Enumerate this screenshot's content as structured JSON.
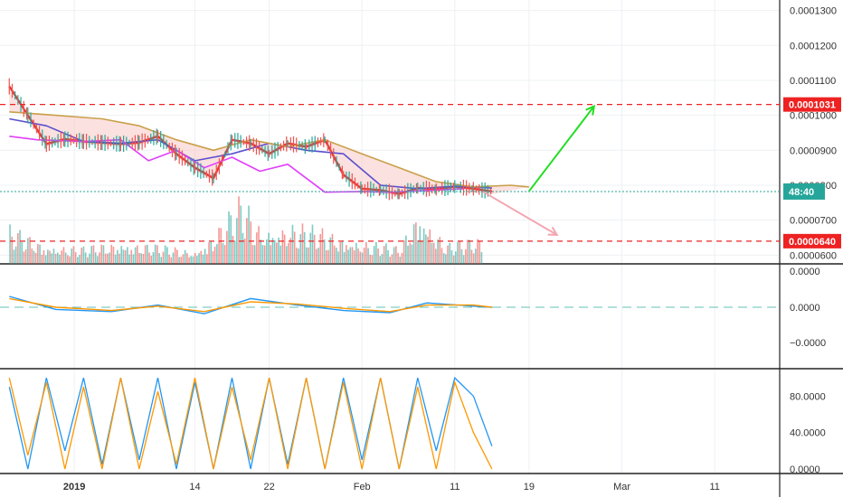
{
  "chart_data": [
    {
      "panel": "price",
      "type": "candlestick",
      "y_axis_ticks": [
        "0.0001300",
        "0.0001200",
        "0.0001100",
        "0.0001000",
        "0.0000900",
        "0.0000800",
        "0.0000700",
        "0.0000600"
      ],
      "ylim": [
        5.75e-05,
        0.000133
      ],
      "last_price_tag": {
        "label": "48:40",
        "value": 7.82e-05,
        "color": "#26a69a"
      },
      "horizontal_levels": [
        {
          "label": "0.0001031",
          "value": 0.0001031,
          "color": "#ee2222",
          "style": "dashed"
        },
        {
          "label": "0.0000640",
          "value": 6.4e-05,
          "color": "#ee2222",
          "style": "dashed"
        }
      ],
      "current_price_line": {
        "value": 7.82e-05,
        "color": "#26a69a",
        "style": "dotted"
      },
      "annotations": [
        {
          "type": "arrow",
          "color": "#22dd22",
          "from": [
            "2019-02-19",
            7.83e-05
          ],
          "to": [
            "2019-02-26",
            0.0001026
          ]
        },
        {
          "type": "arrow",
          "color": "#f4a6b0",
          "from": [
            "2019-02-14",
            7.82e-05
          ],
          "to": [
            "2019-02-22",
            6.58e-05
          ]
        }
      ],
      "series": [
        {
          "name": "",
          "color": "#e53935",
          "values": [
            [
              "2018-12-25",
              0.0001083
            ],
            [
              "2018-12-27",
              0.0001
            ],
            [
              "2018-12-29",
              9.18e-05
            ],
            [
              "2018-12-31",
              9.32e-05
            ],
            [
              "2019-01-02",
              9.25e-05
            ],
            [
              "2019-01-04",
              9.22e-05
            ],
            [
              "2019-01-06",
              9.18e-05
            ],
            [
              "2019-01-08",
              9.22e-05
            ],
            [
              "2019-01-10",
              9.4e-05
            ],
            [
              "2019-01-12",
              8.9e-05
            ],
            [
              "2019-01-14",
              8.5e-05
            ],
            [
              "2019-01-16",
              8.2e-05
            ],
            [
              "2019-01-18",
              9.3e-05
            ],
            [
              "2019-01-20",
              9.2e-05
            ],
            [
              "2019-01-22",
              8.9e-05
            ],
            [
              "2019-01-24",
              9.2e-05
            ],
            [
              "2019-01-26",
              9.1e-05
            ],
            [
              "2019-01-28",
              9.3e-05
            ],
            [
              "2019-01-30",
              8.3e-05
            ],
            [
              "2019-02-01",
              7.9e-05
            ],
            [
              "2019-02-03",
              7.86e-05
            ],
            [
              "2019-02-05",
              7.75e-05
            ],
            [
              "2019-02-07",
              7.92e-05
            ],
            [
              "2019-02-09",
              7.88e-05
            ],
            [
              "2019-02-11",
              7.96e-05
            ],
            [
              "2019-02-13",
              7.9e-05
            ],
            [
              "2019-02-15",
              7.82e-05
            ]
          ]
        },
        {
          "name": "",
          "color": "#5b4fcf",
          "values": [
            [
              "2018-12-25",
              9.9e-05
            ],
            [
              "2018-12-29",
              9.7e-05
            ],
            [
              "2019-01-02",
              9.25e-05
            ],
            [
              "2019-01-06",
              9.2e-05
            ],
            [
              "2019-01-10",
              9.3e-05
            ],
            [
              "2019-01-14",
              8.7e-05
            ],
            [
              "2019-01-18",
              8.9e-05
            ],
            [
              "2019-01-22",
              9.2e-05
            ],
            [
              "2019-01-26",
              9e-05
            ],
            [
              "2019-01-30",
              8.9e-05
            ],
            [
              "2019-02-03",
              8e-05
            ],
            [
              "2019-02-07",
              7.9e-05
            ],
            [
              "2019-02-11",
              7.97e-05
            ],
            [
              "2019-02-15",
              7.92e-05
            ]
          ]
        },
        {
          "name": "",
          "color": "#e040fb",
          "values": [
            [
              "2018-12-25",
              9.4e-05
            ],
            [
              "2018-12-28",
              9.3e-05
            ],
            [
              "2019-01-02",
              9.25e-05
            ],
            [
              "2019-01-06",
              9.3e-05
            ],
            [
              "2019-01-09",
              8.7e-05
            ],
            [
              "2019-01-12",
              9e-05
            ],
            [
              "2019-01-15",
              8.5e-05
            ],
            [
              "2019-01-18",
              8.8e-05
            ],
            [
              "2019-01-21",
              8.4e-05
            ],
            [
              "2019-01-24",
              8.6e-05
            ],
            [
              "2019-01-28",
              7.8e-05
            ],
            [
              "2019-02-01",
              7.82e-05
            ],
            [
              "2019-02-04",
              7.8e-05
            ],
            [
              "2019-02-08",
              7.85e-05
            ],
            [
              "2019-02-12",
              7.9e-05
            ]
          ]
        },
        {
          "name": "",
          "color": "#c9a04a",
          "values": [
            [
              "2018-12-25",
              0.000101
            ],
            [
              "2018-12-30",
              0.0001
            ],
            [
              "2019-01-04",
              9.9e-05
            ],
            [
              "2019-01-08",
              9.7e-05
            ],
            [
              "2019-01-12",
              9.3e-05
            ],
            [
              "2019-01-16",
              9e-05
            ],
            [
              "2019-01-20",
              9.3e-05
            ],
            [
              "2019-01-24",
              9.1e-05
            ],
            [
              "2019-01-28",
              9.3e-05
            ],
            [
              "2019-02-01",
              8.9e-05
            ],
            [
              "2019-02-05",
              8.5e-05
            ],
            [
              "2019-02-09",
              8.1e-05
            ],
            [
              "2019-02-13",
              7.95e-05
            ],
            [
              "2019-02-17",
              8e-05
            ],
            [
              "2019-02-19",
              7.95e-05
            ]
          ]
        }
      ]
    },
    {
      "panel": "volume",
      "type": "bar",
      "colors": {
        "up": "#26a69a",
        "down": "#ef5350"
      },
      "values_relative": [
        [
          "2018-12-25",
          0.55
        ],
        [
          "2018-12-29",
          0.3
        ],
        [
          "2019-01-02",
          0.25
        ],
        [
          "2019-01-06",
          0.35
        ],
        [
          "2019-01-10",
          0.28
        ],
        [
          "2019-01-14",
          0.2
        ],
        [
          "2019-01-16",
          0.48
        ],
        [
          "2019-01-19",
          1.0
        ],
        [
          "2019-01-21",
          0.55
        ],
        [
          "2019-01-24",
          0.62
        ],
        [
          "2019-01-28",
          0.5
        ],
        [
          "2019-02-01",
          0.35
        ],
        [
          "2019-02-05",
          0.25
        ],
        [
          "2019-02-07",
          0.88
        ],
        [
          "2019-02-10",
          0.3
        ],
        [
          "2019-02-14",
          0.4
        ]
      ]
    },
    {
      "panel": "macd",
      "type": "line",
      "y_axis_ticks": [
        "0.0000",
        "0.0000",
        "−0.0000"
      ],
      "series": [
        {
          "name": "",
          "color": "#2196f3",
          "values": [
            [
              "2018-12-25",
              1e-06
            ],
            [
              "2018-12-30",
              -2e-07
            ],
            [
              "2019-01-05",
              -4e-07
            ],
            [
              "2019-01-10",
              2e-07
            ],
            [
              "2019-01-15",
              -6e-07
            ],
            [
              "2019-01-20",
              8e-07
            ],
            [
              "2019-01-25",
              2e-07
            ],
            [
              "2019-01-30",
              -3e-07
            ],
            [
              "2019-02-04",
              -5e-07
            ],
            [
              "2019-02-08",
              4e-07
            ],
            [
              "2019-02-13",
              1e-07
            ],
            [
              "2019-02-15",
              0.0
            ]
          ]
        },
        {
          "name": "",
          "color": "#ff9800",
          "values": [
            [
              "2018-12-25",
              8e-07
            ],
            [
              "2018-12-30",
              0.0
            ],
            [
              "2019-01-05",
              -3e-07
            ],
            [
              "2019-01-10",
              1e-07
            ],
            [
              "2019-01-15",
              -4e-07
            ],
            [
              "2019-01-20",
              5e-07
            ],
            [
              "2019-01-25",
              3e-07
            ],
            [
              "2019-01-30",
              -1e-07
            ],
            [
              "2019-02-04",
              -4e-07
            ],
            [
              "2019-02-08",
              2e-07
            ],
            [
              "2019-02-13",
              2e-07
            ],
            [
              "2019-02-15",
              0.0
            ]
          ]
        }
      ]
    },
    {
      "panel": "oscillator",
      "type": "line",
      "y_axis_ticks": [
        "80.0000",
        "40.0000",
        "0.0000"
      ],
      "ylim": [
        -5,
        110
      ],
      "series": [
        {
          "name": "",
          "color": "#2196f3",
          "values": [
            [
              "2018-12-25",
              90
            ],
            [
              "2018-12-27",
              0
            ],
            [
              "2018-12-29",
              100
            ],
            [
              "2018-12-31",
              20
            ],
            [
              "2019-01-02",
              100
            ],
            [
              "2019-01-04",
              5
            ],
            [
              "2019-01-06",
              100
            ],
            [
              "2019-01-08",
              10
            ],
            [
              "2019-01-10",
              100
            ],
            [
              "2019-01-12",
              0
            ],
            [
              "2019-01-14",
              95
            ],
            [
              "2019-01-16",
              0
            ],
            [
              "2019-01-18",
              100
            ],
            [
              "2019-01-20",
              0
            ],
            [
              "2019-01-22",
              100
            ],
            [
              "2019-01-24",
              5
            ],
            [
              "2019-01-26",
              100
            ],
            [
              "2019-01-28",
              0
            ],
            [
              "2019-01-30",
              100
            ],
            [
              "2019-02-01",
              10
            ],
            [
              "2019-02-03",
              100
            ],
            [
              "2019-02-05",
              0
            ],
            [
              "2019-02-07",
              100
            ],
            [
              "2019-02-09",
              20
            ],
            [
              "2019-02-11",
              100
            ],
            [
              "2019-02-13",
              80
            ],
            [
              "2019-02-15",
              25
            ]
          ]
        },
        {
          "name": "",
          "color": "#ff9800",
          "values": [
            [
              "2018-12-25",
              100
            ],
            [
              "2018-12-27",
              15
            ],
            [
              "2018-12-29",
              95
            ],
            [
              "2018-12-31",
              0
            ],
            [
              "2019-01-02",
              90
            ],
            [
              "2019-01-04",
              0
            ],
            [
              "2019-01-06",
              100
            ],
            [
              "2019-01-08",
              0
            ],
            [
              "2019-01-10",
              85
            ],
            [
              "2019-01-12",
              5
            ],
            [
              "2019-01-14",
              100
            ],
            [
              "2019-01-16",
              0
            ],
            [
              "2019-01-18",
              90
            ],
            [
              "2019-01-20",
              10
            ],
            [
              "2019-01-22",
              100
            ],
            [
              "2019-01-24",
              0
            ],
            [
              "2019-01-26",
              100
            ],
            [
              "2019-01-28",
              0
            ],
            [
              "2019-01-30",
              95
            ],
            [
              "2019-02-01",
              0
            ],
            [
              "2019-02-03",
              100
            ],
            [
              "2019-02-05",
              0
            ],
            [
              "2019-02-07",
              90
            ],
            [
              "2019-02-09",
              0
            ],
            [
              "2019-02-11",
              95
            ],
            [
              "2019-02-13",
              40
            ],
            [
              "2019-02-15",
              0
            ]
          ]
        }
      ]
    }
  ],
  "x_axis": {
    "ticks": [
      {
        "label": "2019",
        "date": "2019-01-01"
      },
      {
        "label": "14",
        "date": "2019-01-14"
      },
      {
        "label": "22",
        "date": "2019-01-22"
      },
      {
        "label": "Feb",
        "date": "2019-02-01"
      },
      {
        "label": "11",
        "date": "2019-02-11"
      },
      {
        "label": "19",
        "date": "2019-02-19"
      },
      {
        "label": "Mar",
        "date": "2019-03-01"
      },
      {
        "label": "11",
        "date": "2019-03-11"
      }
    ],
    "range": [
      "2018-12-24",
      "2019-03-18"
    ]
  }
}
